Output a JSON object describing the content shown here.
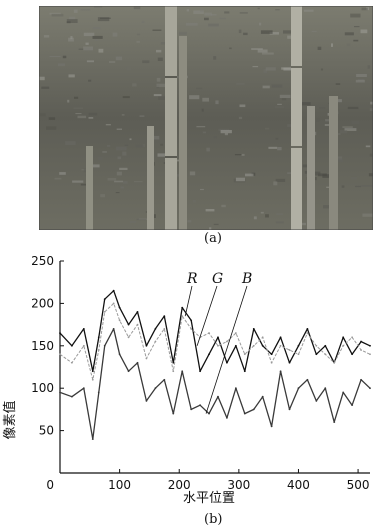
{
  "figure": {
    "caption_a": "(a)",
    "caption_b": "(b)",
    "photo_icon": "photo-bamboo-stalks"
  },
  "colors": {
    "R": "#111111",
    "G": "#9a9a9a",
    "B": "#3a3a3a"
  },
  "chart_data": {
    "type": "line",
    "xlabel": "水平位置",
    "ylabel": "像素值",
    "xlim": [
      0,
      520
    ],
    "ylim": [
      0,
      250
    ],
    "xticks": [
      0,
      100,
      200,
      300,
      400,
      500
    ],
    "yticks": [
      50,
      100,
      150,
      200,
      250
    ],
    "grid": false,
    "annotations": [
      "R",
      "G",
      "B"
    ],
    "x": [
      0,
      20,
      40,
      55,
      65,
      75,
      90,
      100,
      115,
      130,
      145,
      160,
      175,
      190,
      205,
      220,
      235,
      250,
      265,
      280,
      295,
      310,
      325,
      340,
      355,
      370,
      385,
      400,
      415,
      430,
      445,
      460,
      475,
      490,
      505,
      520
    ],
    "series": [
      {
        "name": "R",
        "values": [
          165,
          150,
          170,
          120,
          160,
          205,
          215,
          195,
          175,
          190,
          150,
          170,
          185,
          130,
          195,
          180,
          120,
          140,
          160,
          130,
          150,
          120,
          170,
          150,
          140,
          160,
          130,
          150,
          170,
          140,
          150,
          130,
          160,
          140,
          155,
          150
        ]
      },
      {
        "name": "G",
        "values": [
          140,
          130,
          150,
          110,
          145,
          190,
          200,
          180,
          160,
          175,
          135,
          155,
          170,
          120,
          185,
          170,
          160,
          165,
          150,
          155,
          165,
          140,
          150,
          160,
          130,
          150,
          145,
          140,
          165,
          150,
          140,
          130,
          150,
          160,
          145,
          140
        ]
      },
      {
        "name": "B",
        "values": [
          95,
          90,
          100,
          40,
          95,
          150,
          170,
          140,
          120,
          130,
          85,
          100,
          110,
          70,
          120,
          75,
          80,
          70,
          90,
          65,
          100,
          70,
          75,
          90,
          55,
          120,
          75,
          100,
          110,
          85,
          100,
          60,
          95,
          80,
          110,
          100
        ]
      }
    ]
  }
}
